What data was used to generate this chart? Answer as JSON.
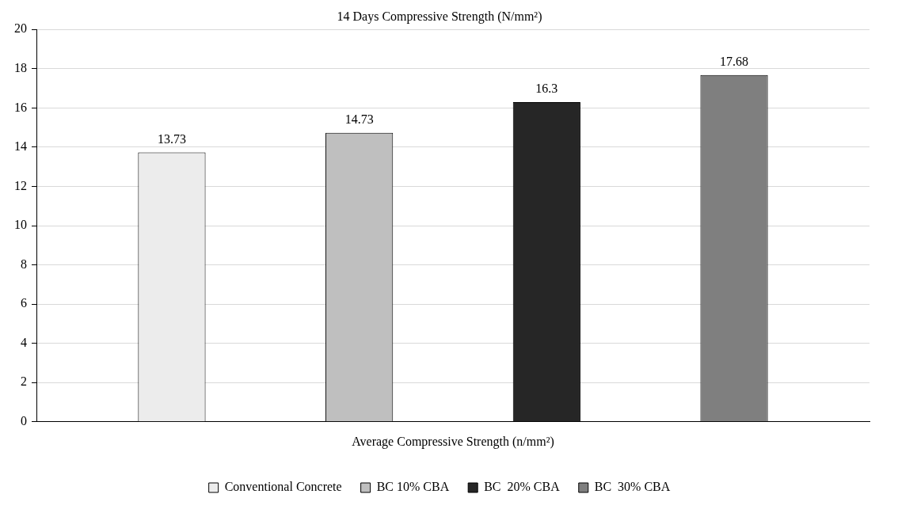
{
  "chart_data": {
    "type": "bar",
    "title": "14 Days Compressive Strength (N/mm²)",
    "categories": [
      "Average Compressive Strength (n/mm²)"
    ],
    "series": [
      {
        "name": "Conventional Concrete",
        "color": "#ececec",
        "values": [
          13.73
        ]
      },
      {
        "name": "BC 10% CBA",
        "color": "#bfbfbf",
        "values": [
          14.73
        ]
      },
      {
        "name": "BC  20% CBA",
        "color": "#262626",
        "values": [
          16.3
        ]
      },
      {
        "name": "BC  30% CBA",
        "color": "#7f7f7f",
        "values": [
          17.68
        ]
      }
    ],
    "ylim": [
      0,
      20
    ],
    "yticks": [
      0,
      2,
      4,
      6,
      8,
      10,
      12,
      14,
      16,
      18,
      20
    ],
    "grid": "y",
    "legend": "bottom",
    "data_labels": true
  }
}
